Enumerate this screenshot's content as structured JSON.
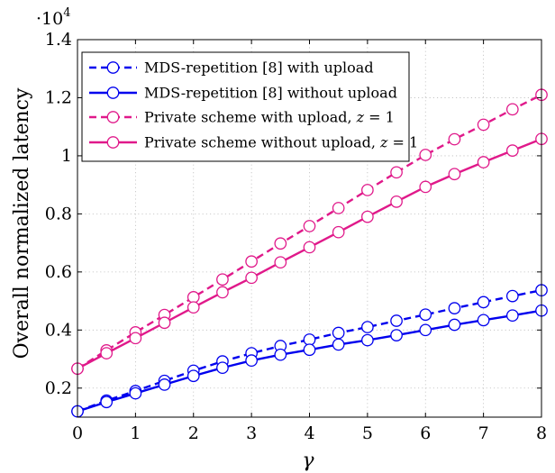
{
  "chart_data": {
    "type": "line",
    "title": "",
    "xlabel": "γ",
    "ylabel": "Overall normalized latency",
    "y_multiplier": "·10",
    "y_multiplier_exponent": "4",
    "xlim": [
      0,
      8
    ],
    "ylim": [
      0.1,
      1.4
    ],
    "x_ticks": [
      0,
      1,
      2,
      3,
      4,
      5,
      6,
      7,
      8
    ],
    "y_ticks": [
      0.2,
      0.4,
      0.6,
      0.8,
      1,
      1.2,
      1.4
    ],
    "y_tick_labels": [
      "0.2",
      "0.4",
      "0.6",
      "0.8",
      "1",
      "1.2",
      "1.4"
    ],
    "grid": true,
    "legend_position": "top-left",
    "x": [
      0,
      0.5,
      1,
      1.5,
      2,
      2.5,
      3,
      3.5,
      4,
      4.5,
      5,
      5.5,
      6,
      6.5,
      7,
      7.5,
      8
    ],
    "series": [
      {
        "name": "MDS-repetition [8] with upload",
        "color": "#0000ee",
        "dashed": true,
        "values": [
          0.12,
          0.157,
          0.19,
          0.225,
          0.26,
          0.292,
          0.32,
          0.345,
          0.367,
          0.39,
          0.41,
          0.432,
          0.453,
          0.475,
          0.496,
          0.517,
          0.537
        ]
      },
      {
        "name": "MDS-repetition [8] without upload",
        "color": "#0000ee",
        "dashed": false,
        "values": [
          0.12,
          0.152,
          0.182,
          0.212,
          0.242,
          0.27,
          0.295,
          0.315,
          0.332,
          0.35,
          0.365,
          0.382,
          0.4,
          0.418,
          0.434,
          0.45,
          0.467
        ]
      },
      {
        "name": "Private scheme with upload, z = 1",
        "name_prefix": "Private scheme with upload, ",
        "name_var": "z",
        "name_suffix": " = 1",
        "color": "#e0198a",
        "dashed": true,
        "values": [
          0.267,
          0.33,
          0.392,
          0.452,
          0.513,
          0.574,
          0.636,
          0.698,
          0.758,
          0.82,
          0.882,
          0.943,
          1.003,
          1.057,
          1.107,
          1.16,
          1.21
        ]
      },
      {
        "name": "Private scheme without upload, z = 1",
        "name_prefix": "Private scheme without upload, ",
        "name_var": "z",
        "name_suffix": " = 1",
        "color": "#e0198a",
        "dashed": false,
        "values": [
          0.267,
          0.32,
          0.372,
          0.425,
          0.478,
          0.53,
          0.58,
          0.633,
          0.685,
          0.737,
          0.79,
          0.842,
          0.893,
          0.937,
          0.978,
          1.018,
          1.058
        ]
      }
    ]
  }
}
